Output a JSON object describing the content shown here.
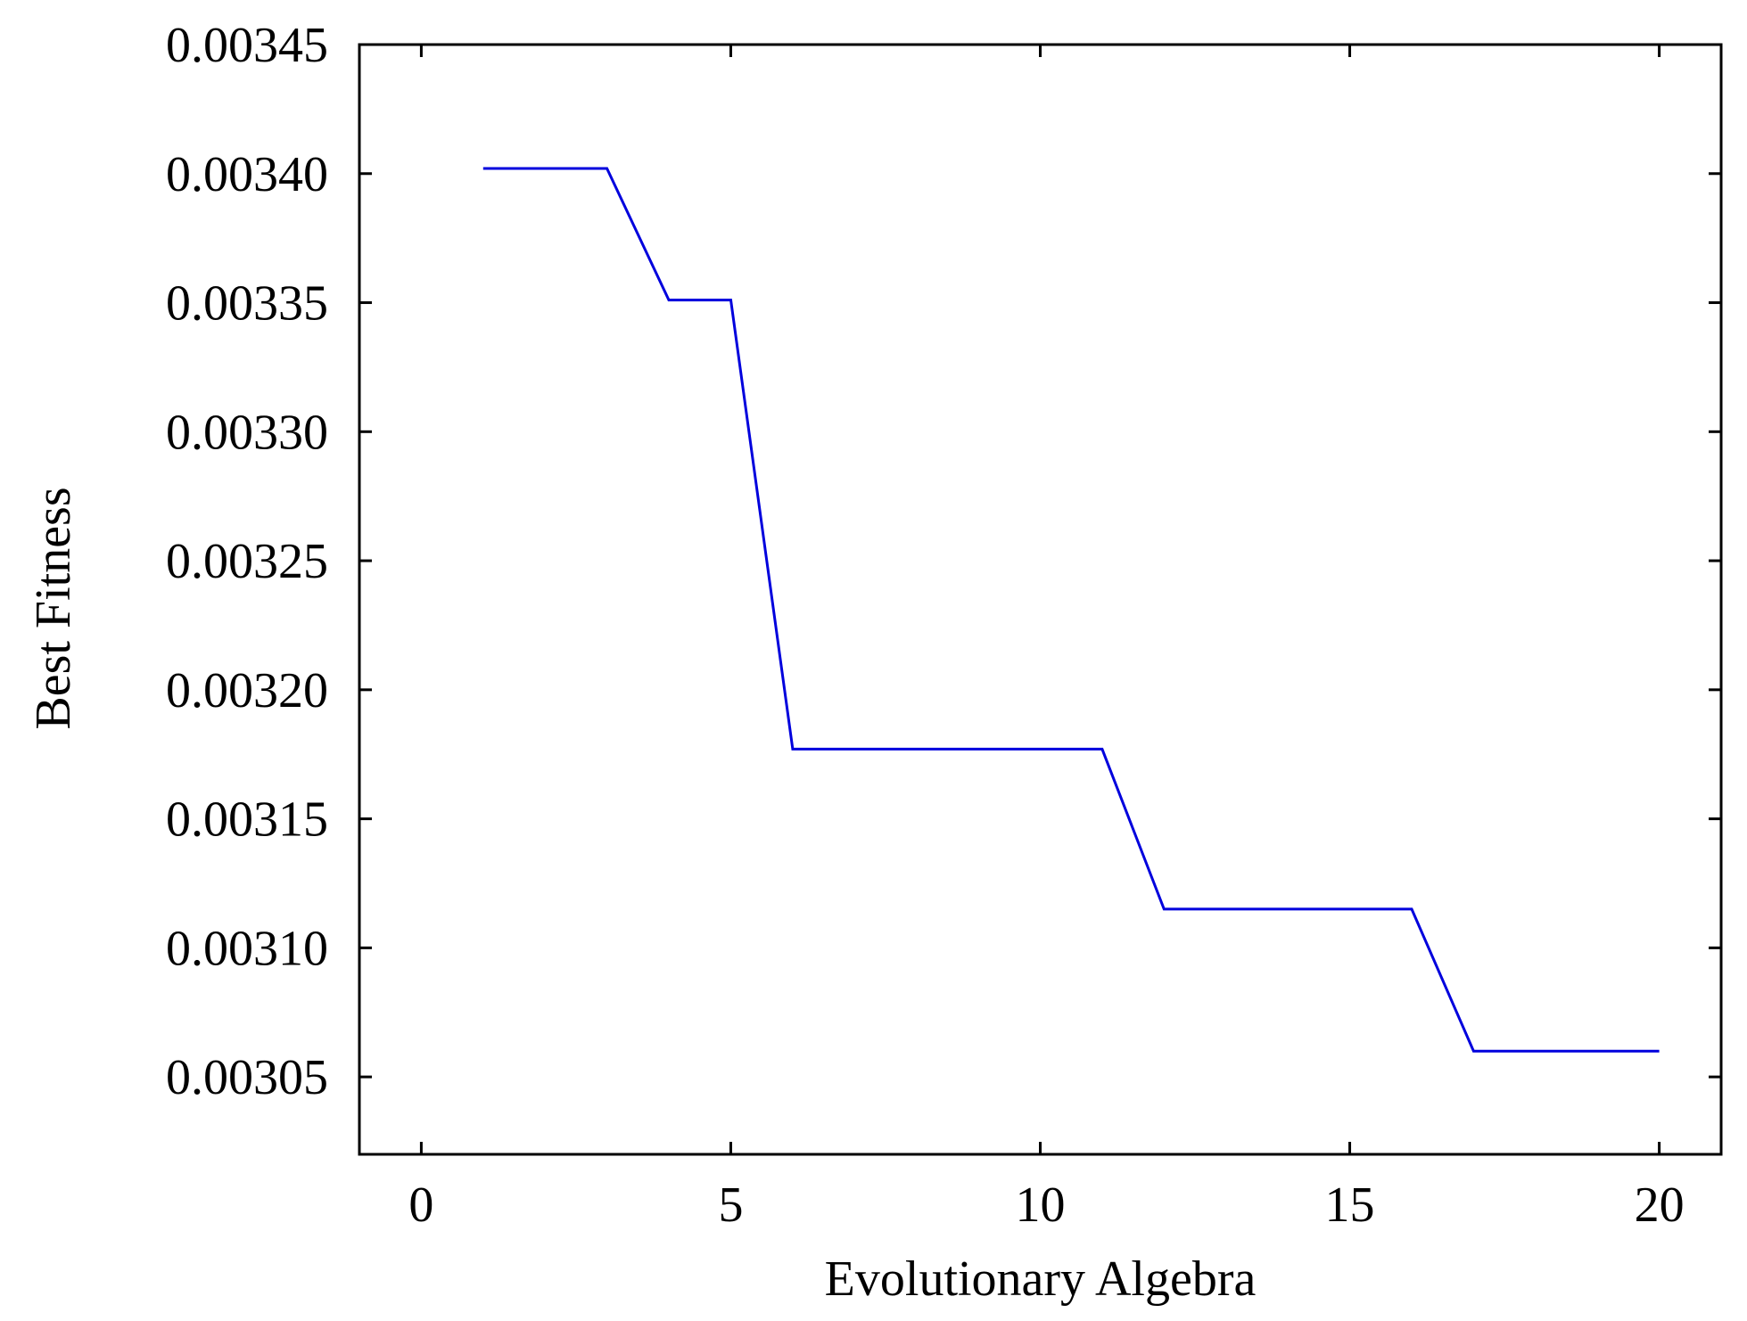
{
  "chart_data": {
    "type": "line",
    "title": "",
    "xlabel": "Evolutionary Algebra",
    "ylabel": "Best Fitness",
    "xlim": [
      -1,
      21
    ],
    "ylim": [
      0.00302,
      0.00345
    ],
    "xticks": [
      0,
      5,
      10,
      15,
      20
    ],
    "xtick_labels": [
      "0",
      "5",
      "10",
      "15",
      "20"
    ],
    "yticks": [
      0.00305,
      0.0031,
      0.00315,
      0.0032,
      0.00325,
      0.0033,
      0.00335,
      0.0034,
      0.00345
    ],
    "ytick_labels": [
      "0.00305",
      "0.00310",
      "0.00315",
      "0.00320",
      "0.00325",
      "0.00330",
      "0.00335",
      "0.00340",
      "0.00345"
    ],
    "grid": false,
    "legend": "none",
    "series": [
      {
        "color": "#0000dd",
        "x": [
          1,
          2,
          3,
          4,
          5,
          6,
          7,
          8,
          9,
          10,
          11,
          12,
          13,
          14,
          15,
          16,
          17,
          18,
          19,
          20
        ],
        "y": [
          0.003402,
          0.003402,
          0.003402,
          0.003351,
          0.003351,
          0.003177,
          0.003177,
          0.003177,
          0.003177,
          0.003177,
          0.003177,
          0.003115,
          0.003115,
          0.003115,
          0.003115,
          0.003115,
          0.00306,
          0.00306,
          0.00306,
          0.00306
        ]
      }
    ]
  }
}
